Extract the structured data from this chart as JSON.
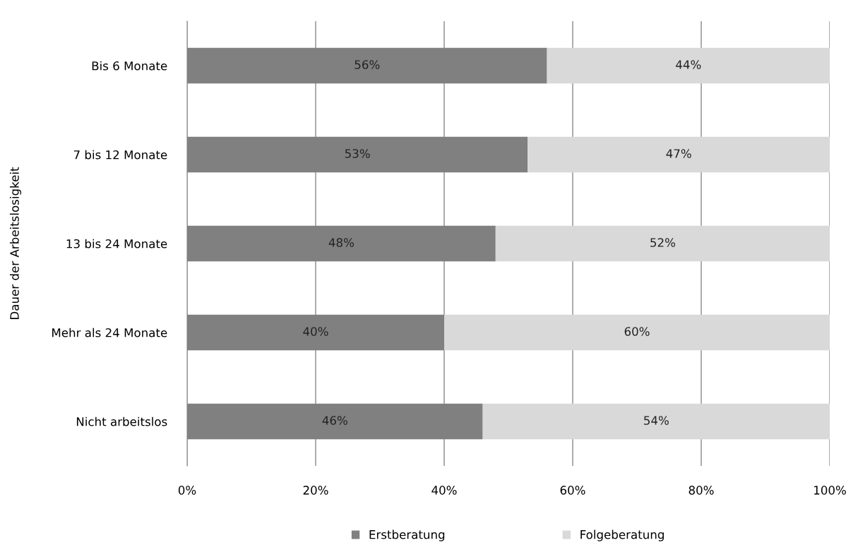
{
  "chart_data": {
    "type": "bar",
    "orientation": "horizontal",
    "stacked": true,
    "ylabel": "Dauer der Arbeitslosigkeit",
    "categories": [
      "Bis 6 Monate",
      "7 bis 12 Monate",
      "13 bis 24 Monate",
      "Mehr als 24 Monate",
      "Nicht arbeitslos"
    ],
    "series": [
      {
        "name": "Erstberatung",
        "color": "#808080",
        "values": [
          56,
          53,
          48,
          40,
          46
        ],
        "value_labels": [
          "56%",
          "53%",
          "48%",
          "40%",
          "46%"
        ]
      },
      {
        "name": "Folgeberatung",
        "color": "#d9d9d9",
        "values": [
          44,
          47,
          52,
          60,
          54
        ],
        "value_labels": [
          "44%",
          "47%",
          "52%",
          "60%",
          "54%"
        ]
      }
    ],
    "xlim": [
      0,
      100
    ],
    "xticks": [
      {
        "value": 0,
        "label": "0%"
      },
      {
        "value": 20,
        "label": "20%"
      },
      {
        "value": 40,
        "label": "40%"
      },
      {
        "value": 60,
        "label": "60%"
      },
      {
        "value": 80,
        "label": "80%"
      },
      {
        "value": 100,
        "label": "100%"
      }
    ],
    "grid": "x",
    "legend": "bottom"
  }
}
